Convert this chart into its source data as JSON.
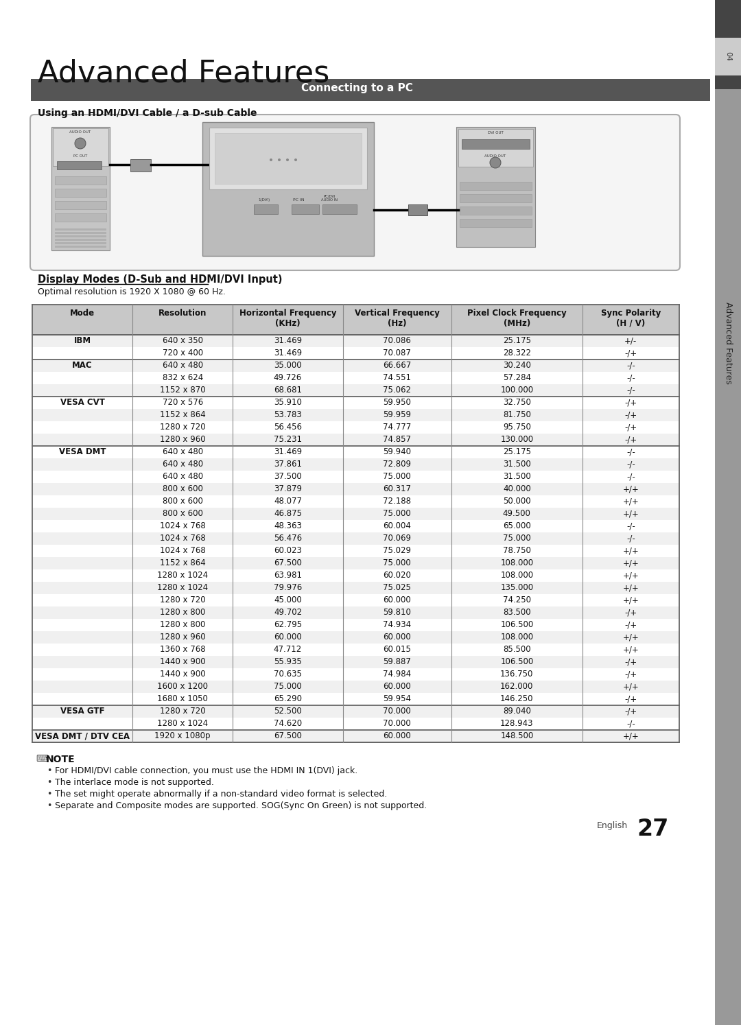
{
  "title": "Advanced Features",
  "section_header": "Connecting to a PC",
  "subsection": "Using an HDMI/DVI Cable / a D-sub Cable",
  "display_modes_title": "Display Modes (D-Sub and HDMI/DVI Input)",
  "optimal_res": "Optimal resolution is 1920 X 1080 @ 60 Hz.",
  "table_headers": [
    "Mode",
    "Resolution",
    "Horizontal Frequency\n(KHz)",
    "Vertical Frequency\n(Hz)",
    "Pixel Clock Frequency\n(MHz)",
    "Sync Polarity\n(H / V)"
  ],
  "table_data": [
    [
      "IBM",
      "640 x 350",
      "31.469",
      "70.086",
      "25.175",
      "+/-"
    ],
    [
      "",
      "720 x 400",
      "31.469",
      "70.087",
      "28.322",
      "-/+"
    ],
    [
      "MAC",
      "640 x 480",
      "35.000",
      "66.667",
      "30.240",
      "-/-"
    ],
    [
      "",
      "832 x 624",
      "49.726",
      "74.551",
      "57.284",
      "-/-"
    ],
    [
      "",
      "1152 x 870",
      "68.681",
      "75.062",
      "100.000",
      "-/-"
    ],
    [
      "VESA CVT",
      "720 x 576",
      "35.910",
      "59.950",
      "32.750",
      "-/+"
    ],
    [
      "",
      "1152 x 864",
      "53.783",
      "59.959",
      "81.750",
      "-/+"
    ],
    [
      "",
      "1280 x 720",
      "56.456",
      "74.777",
      "95.750",
      "-/+"
    ],
    [
      "",
      "1280 x 960",
      "75.231",
      "74.857",
      "130.000",
      "-/+"
    ],
    [
      "VESA DMT",
      "640 x 480",
      "31.469",
      "59.940",
      "25.175",
      "-/-"
    ],
    [
      "",
      "640 x 480",
      "37.861",
      "72.809",
      "31.500",
      "-/-"
    ],
    [
      "",
      "640 x 480",
      "37.500",
      "75.000",
      "31.500",
      "-/-"
    ],
    [
      "",
      "800 x 600",
      "37.879",
      "60.317",
      "40.000",
      "+/+"
    ],
    [
      "",
      "800 x 600",
      "48.077",
      "72.188",
      "50.000",
      "+/+"
    ],
    [
      "",
      "800 x 600",
      "46.875",
      "75.000",
      "49.500",
      "+/+"
    ],
    [
      "",
      "1024 x 768",
      "48.363",
      "60.004",
      "65.000",
      "-/-"
    ],
    [
      "",
      "1024 x 768",
      "56.476",
      "70.069",
      "75.000",
      "-/-"
    ],
    [
      "",
      "1024 x 768",
      "60.023",
      "75.029",
      "78.750",
      "+/+"
    ],
    [
      "",
      "1152 x 864",
      "67.500",
      "75.000",
      "108.000",
      "+/+"
    ],
    [
      "",
      "1280 x 1024",
      "63.981",
      "60.020",
      "108.000",
      "+/+"
    ],
    [
      "",
      "1280 x 1024",
      "79.976",
      "75.025",
      "135.000",
      "+/+"
    ],
    [
      "",
      "1280 x 720",
      "45.000",
      "60.000",
      "74.250",
      "+/+"
    ],
    [
      "",
      "1280 x 800",
      "49.702",
      "59.810",
      "83.500",
      "-/+"
    ],
    [
      "",
      "1280 x 800",
      "62.795",
      "74.934",
      "106.500",
      "-/+"
    ],
    [
      "",
      "1280 x 960",
      "60.000",
      "60.000",
      "108.000",
      "+/+"
    ],
    [
      "",
      "1360 x 768",
      "47.712",
      "60.015",
      "85.500",
      "+/+"
    ],
    [
      "",
      "1440 x 900",
      "55.935",
      "59.887",
      "106.500",
      "-/+"
    ],
    [
      "",
      "1440 x 900",
      "70.635",
      "74.984",
      "136.750",
      "-/+"
    ],
    [
      "",
      "1600 x 1200",
      "75.000",
      "60.000",
      "162.000",
      "+/+"
    ],
    [
      "",
      "1680 x 1050",
      "65.290",
      "59.954",
      "146.250",
      "-/+"
    ],
    [
      "VESA GTF",
      "1280 x 720",
      "52.500",
      "70.000",
      "89.040",
      "-/+"
    ],
    [
      "",
      "1280 x 1024",
      "74.620",
      "70.000",
      "128.943",
      "-/-"
    ],
    [
      "VESA DMT / DTV CEA",
      "1920 x 1080p",
      "67.500",
      "60.000",
      "148.500",
      "+/+"
    ]
  ],
  "group_separator_rows": [
    0,
    2,
    5,
    9,
    30,
    32,
    33
  ],
  "note_title": "NOTE",
  "notes": [
    "For HDMI/DVI cable connection, you must use the HDMI IN 1(DVI) jack.",
    "The interlace mode is not supported.",
    "The set might operate abnormally if a non-standard video format is selected.",
    "Separate and Composite modes are supported. SOG(Sync On Green) is not supported."
  ],
  "page_number": "27",
  "sidebar_text": "Advanced Features",
  "sidebar_num": "04",
  "header_bg": "#555555",
  "table_header_bg": "#c8c8c8",
  "sidebar_dark_bg": "#444444",
  "sidebar_gray_bg": "#999999",
  "sidebar_light_bg": "#cccccc"
}
